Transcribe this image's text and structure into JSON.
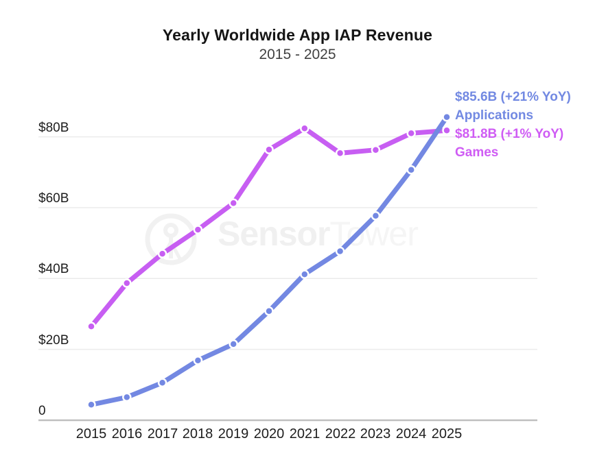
{
  "page": {
    "background": "#ffffff"
  },
  "watermark": {
    "bold_text": "Sensor",
    "light_text": "Tower",
    "bold_color": "#f0f0f0",
    "light_color": "#f5f5f5",
    "logo_color": "#f1f1f1"
  },
  "legend": {
    "applications": {
      "value_label": "$85.6B (+21% YoY)",
      "series_label": "Applications",
      "color": "#7289e2"
    },
    "games": {
      "value_label": "$81.8B (+1% YoY)",
      "series_label": "Games",
      "color": "#cf5cf4"
    }
  },
  "chart_data": {
    "type": "line",
    "title": "Yearly Worldwide App IAP Revenue",
    "subtitle": "2015 - 2025",
    "categories": [
      "2015",
      "2016",
      "2017",
      "2018",
      "2019",
      "2020",
      "2021",
      "2022",
      "2023",
      "2024",
      "2025"
    ],
    "series": [
      {
        "name": "Applications",
        "color": "#7388e2",
        "values": [
          4.4,
          6.5,
          10.6,
          16.9,
          21.5,
          30.8,
          41.2,
          47.7,
          57.7,
          70.7,
          85.6
        ],
        "end_annotation": "$85.6B (+21% YoY)"
      },
      {
        "name": "Games",
        "color": "#c75ef2",
        "values": [
          26.5,
          38.7,
          47.0,
          53.8,
          61.3,
          76.4,
          82.4,
          75.4,
          76.3,
          81.0,
          81.8
        ],
        "end_annotation": "$81.8B (+1% YoY)"
      }
    ],
    "y_axis": {
      "tick_values": [
        0,
        20,
        40,
        60,
        80
      ],
      "tick_labels": [
        "0",
        "$20B",
        "$40B",
        "$60B",
        "$80B"
      ]
    },
    "xlabel": "",
    "ylabel": "",
    "ylim": [
      0,
      88
    ],
    "grid": "horizontal",
    "legend_position": "top-right",
    "colors": {
      "grid": "#ebebeb",
      "axis": "#bfbfbf",
      "tick_text": "#1d1d1d"
    }
  }
}
